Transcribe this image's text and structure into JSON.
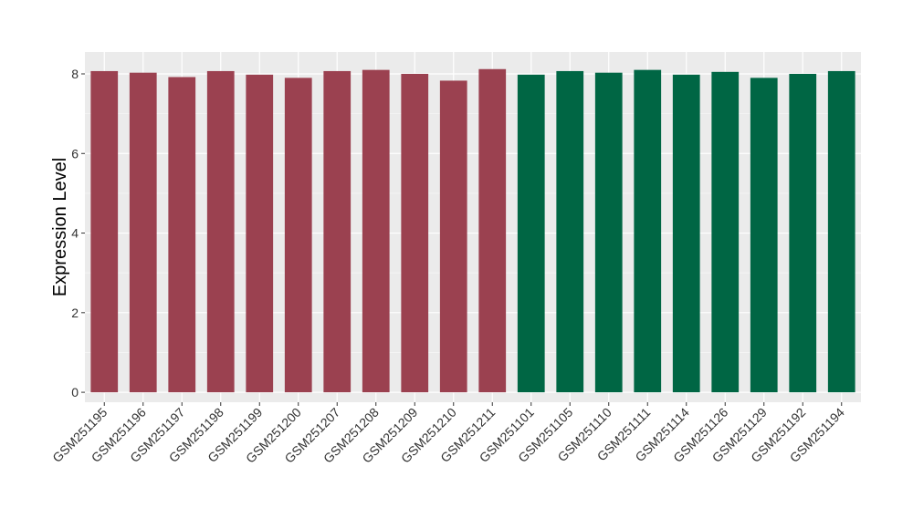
{
  "chart_data": {
    "type": "bar",
    "title": "",
    "xlabel": "",
    "ylabel": "Expression Level",
    "ylim": [
      -0.25,
      8.55
    ],
    "yticks": [
      0,
      2,
      4,
      6,
      8
    ],
    "grid": true,
    "legend": "none",
    "categories": [
      "GSM251195",
      "GSM251196",
      "GSM251197",
      "GSM251198",
      "GSM251199",
      "GSM251200",
      "GSM251207",
      "GSM251208",
      "GSM251209",
      "GSM251210",
      "GSM251211",
      "GSM251101",
      "GSM251105",
      "GSM251110",
      "GSM251111",
      "GSM251114",
      "GSM251126",
      "GSM251129",
      "GSM251192",
      "GSM251194"
    ],
    "values": [
      8.07,
      8.03,
      7.92,
      8.07,
      7.98,
      7.9,
      8.07,
      8.1,
      8.0,
      7.83,
      8.12,
      7.98,
      8.07,
      8.03,
      8.1,
      7.98,
      8.05,
      7.9,
      8.0,
      8.07
    ],
    "colors": [
      "#9b4150",
      "#9b4150",
      "#9b4150",
      "#9b4150",
      "#9b4150",
      "#9b4150",
      "#9b4150",
      "#9b4150",
      "#9b4150",
      "#9b4150",
      "#9b4150",
      "#006644",
      "#006644",
      "#006644",
      "#006644",
      "#006644",
      "#006644",
      "#006644",
      "#006644",
      "#006644"
    ]
  },
  "style": {
    "panel_background": "#ebebeb",
    "grid_major": "#ffffff",
    "grid_minor": "#f5f5f5",
    "group_a_color": "#9b4150",
    "group_b_color": "#006644"
  }
}
